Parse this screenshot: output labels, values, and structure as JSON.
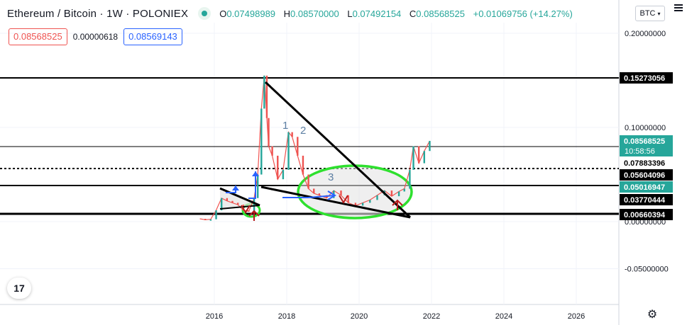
{
  "header": {
    "symbol": "Ethereum / Bitcoin · 1W · POLONIEX",
    "ohlc": {
      "o_label": "O",
      "o": "0.07498989",
      "h_label": "H",
      "h": "0.08570000",
      "l_label": "L",
      "l": "0.07492154",
      "c_label": "C",
      "c": "0.08568525",
      "change": "+0.01069756 (+14.27%)"
    }
  },
  "trade": {
    "sell": "0.08568525",
    "spread": "0.00000618",
    "buy": "0.08569143"
  },
  "currency_button": "BTC",
  "logo_text": "17",
  "colors": {
    "up": "#26a69a",
    "down": "#ef5350",
    "price_label_bg": "#26a69a",
    "level_label_bg": "#000000",
    "ellipse": "#2ee02e",
    "arrow_blue": "#2962ff",
    "arrow_red": "#b71c1c"
  },
  "chart_data": {
    "type": "line",
    "title": "Ethereum / Bitcoin · 1W · POLONIEX",
    "x_ticks": [
      "2016",
      "2018",
      "2020",
      "2022",
      "2024",
      "2026"
    ],
    "y_ticks": [
      "0.20000000",
      "0.10000000",
      "0.00000000",
      "-0.05000000"
    ],
    "ylim": [
      -0.09,
      0.225
    ],
    "series": [
      {
        "x": [
          2015.6,
          2015.75,
          2015.9,
          2016.05,
          2016.2,
          2016.35,
          2016.5,
          2016.65,
          2016.8,
          2016.95,
          2017.1,
          2017.2,
          2017.3,
          2017.38,
          2017.45,
          2017.5,
          2017.6,
          2017.75,
          2017.9,
          2018.05,
          2018.15,
          2018.3,
          2018.45,
          2018.6,
          2018.75,
          2018.9,
          2019.1,
          2019.3,
          2019.5,
          2019.7,
          2019.9,
          2020.1,
          2020.3,
          2020.5,
          2020.7,
          2020.9,
          2021.1,
          2021.25,
          2021.4,
          2021.5,
          2021.65,
          2021.8,
          2021.95
        ],
        "values": [
          0.003,
          0.002,
          0.0025,
          0.012,
          0.025,
          0.022,
          0.02,
          0.018,
          0.012,
          0.011,
          0.025,
          0.05,
          0.12,
          0.155,
          0.11,
          0.08,
          0.07,
          0.045,
          0.055,
          0.095,
          0.09,
          0.07,
          0.05,
          0.035,
          0.03,
          0.028,
          0.025,
          0.033,
          0.028,
          0.02,
          0.017,
          0.02,
          0.023,
          0.028,
          0.033,
          0.027,
          0.032,
          0.035,
          0.055,
          0.08,
          0.062,
          0.075,
          0.0857
        ]
      }
    ],
    "horizontal_levels": [
      {
        "value": "0.15273056",
        "label_bg": "#000000"
      },
      {
        "value": "0.08568525",
        "label_bg": "#26a69a",
        "countdown": "10:58:56"
      },
      {
        "value": "0.07883396",
        "label_bg": "#ffffff",
        "style": "dotted"
      },
      {
        "value": "0.05604096",
        "label_bg": "#000000"
      },
      {
        "value": "0.05016947",
        "label_bg": "#26a69a"
      },
      {
        "value": "0.03770444",
        "label_bg": "#000000"
      },
      {
        "value": "0.00660394",
        "label_bg": "#000000"
      }
    ],
    "wave_labels": [
      "1",
      "2",
      "3"
    ],
    "annotations": [
      "descending trendline",
      "triangle pattern 2016-2017",
      "ellipse accumulation zone 2018-2021",
      "blue up-arrows",
      "red up-arrows"
    ],
    "grid": true
  }
}
